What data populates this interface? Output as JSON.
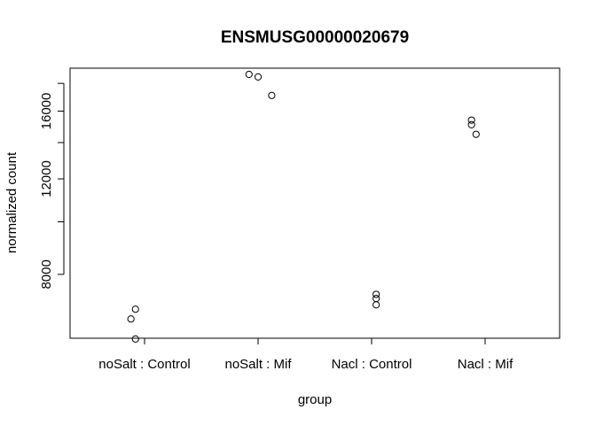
{
  "chart_data": {
    "type": "scatter",
    "title": "ENSMUSG00000020679",
    "xlabel": "group",
    "ylabel": "normalized count",
    "categories": [
      "noSalt : Control",
      "noSalt : Mif",
      "Nacl : Control",
      "Nacl : Mif"
    ],
    "y_ticks": [
      8000,
      12000,
      16000
    ],
    "y_ticks_unlabeled": [
      10000,
      14000,
      18000
    ],
    "ylim": [
      6100,
      19200
    ],
    "grid": false,
    "log_y": true,
    "series": [
      {
        "points": [
          {
            "group": "noSalt : Control",
            "y": 6900,
            "jitter": -0.02
          },
          {
            "group": "noSalt : Control",
            "y": 6620,
            "jitter": -0.03
          },
          {
            "group": "noSalt : Control",
            "y": 6080,
            "jitter": -0.02
          },
          {
            "group": "noSalt : Mif",
            "y": 18700,
            "jitter": -0.02
          },
          {
            "group": "noSalt : Mif",
            "y": 18500,
            "jitter": 0.0
          },
          {
            "group": "noSalt : Mif",
            "y": 17100,
            "jitter": 0.03
          },
          {
            "group": "Nacl : Control",
            "y": 7350,
            "jitter": 0.01
          },
          {
            "group": "Nacl : Control",
            "y": 7220,
            "jitter": 0.01
          },
          {
            "group": "Nacl : Control",
            "y": 7030,
            "jitter": 0.01
          },
          {
            "group": "Nacl : Mif",
            "y": 15400,
            "jitter": -0.03
          },
          {
            "group": "Nacl : Mif",
            "y": 15100,
            "jitter": -0.03
          },
          {
            "group": "Nacl : Mif",
            "y": 14500,
            "jitter": -0.02
          }
        ]
      }
    ]
  }
}
